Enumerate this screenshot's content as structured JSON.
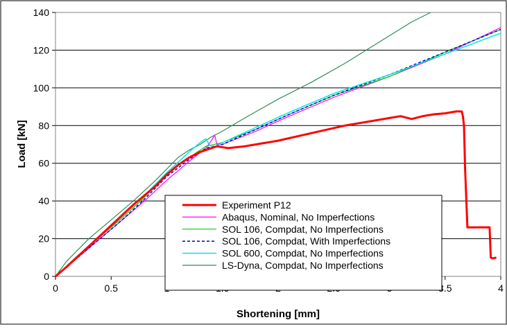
{
  "chart_data": {
    "type": "line",
    "title": "",
    "xlabel": "Shortening [mm]",
    "ylabel": "Load [kN]",
    "xlim": [
      0,
      4
    ],
    "ylim": [
      0,
      140
    ],
    "xticks": [
      0,
      0.5,
      1,
      1.5,
      2,
      2.5,
      3,
      3.5,
      4
    ],
    "xtick_labels": [
      "0",
      "0.5",
      "1",
      "1.5",
      "2",
      "2.5",
      "3",
      "3.5",
      "4"
    ],
    "yticks": [
      0,
      20,
      40,
      60,
      80,
      100,
      120,
      140
    ],
    "ytick_labels": [
      "0",
      "20",
      "40",
      "60",
      "80",
      "100",
      "120",
      "140"
    ],
    "grid": "horizontal",
    "legend_position": "bottom-center",
    "series": [
      {
        "name": "Experiment P12",
        "color": "#ff0000",
        "dash": "solid",
        "width": 3,
        "x": [
          0,
          0.1,
          0.3,
          0.5,
          0.7,
          0.9,
          1.0,
          1.1,
          1.2,
          1.3,
          1.4,
          1.45,
          1.55,
          1.7,
          2.0,
          2.3,
          2.6,
          2.9,
          3.0,
          3.1,
          3.2,
          3.3,
          3.4,
          3.5,
          3.6,
          3.65,
          3.66,
          3.67,
          3.68,
          3.7,
          3.8,
          3.9,
          3.91,
          3.93,
          3.96
        ],
        "y": [
          0,
          5,
          16,
          27,
          38,
          48,
          54,
          59,
          63,
          66,
          68,
          69,
          68,
          69,
          72,
          76,
          80,
          83,
          84,
          85,
          83.5,
          85,
          86,
          86.5,
          87.5,
          87.5,
          85,
          80,
          57,
          26,
          26,
          26,
          10,
          9.5,
          10
        ]
      },
      {
        "name": "Abaqus, Nominal, No Imperfections",
        "color": "#ff00ff",
        "dash": "solid",
        "width": 1.2,
        "x": [
          0,
          0.2,
          0.4,
          0.6,
          0.8,
          1.0,
          1.2,
          1.35,
          1.4,
          1.43,
          1.45,
          1.5,
          1.8,
          2.1,
          2.5,
          3.0,
          3.5,
          4.0
        ],
        "y": [
          0,
          10,
          20,
          30,
          40,
          51,
          61,
          68,
          72,
          75,
          70,
          70,
          77,
          85,
          95,
          106,
          118,
          132
        ]
      },
      {
        "name": "SOL 106, Compdat, No Imperfections",
        "color": "#00cc00",
        "dash": "solid",
        "width": 1.2,
        "x": [
          0,
          0.2,
          0.4,
          0.6,
          0.8,
          1.0,
          1.2,
          1.35,
          1.5,
          1.8,
          2.1,
          2.5,
          3.0,
          3.5,
          4.0
        ],
        "y": [
          0,
          11,
          21,
          31,
          42,
          54,
          63,
          69,
          71,
          78,
          86,
          96,
          106,
          119,
          131
        ]
      },
      {
        "name": "SOL 106, Compdat, With Imperfections",
        "color": "#0000cc",
        "dash": "dashed",
        "width": 1.5,
        "x": [
          0,
          0.2,
          0.4,
          0.6,
          0.8,
          1.0,
          1.2,
          1.35,
          1.5,
          1.8,
          2.1,
          2.5,
          3.0,
          3.5,
          4.0
        ],
        "y": [
          0,
          10,
          20,
          30,
          41,
          53,
          62,
          68,
          70,
          78,
          86,
          96,
          107,
          119,
          131
        ]
      },
      {
        "name": "SOL 600, Compdat, No Imperfections",
        "color": "#00e5e5",
        "dash": "solid",
        "width": 1.5,
        "x": [
          0,
          0.2,
          0.4,
          0.6,
          0.8,
          1.0,
          1.2,
          1.3,
          1.35,
          1.38,
          1.42,
          1.5,
          1.8,
          2.1,
          2.5,
          3.0,
          3.5,
          4.0
        ],
        "y": [
          0,
          11,
          21,
          32,
          43,
          55,
          66,
          71,
          73,
          70,
          68,
          71,
          79,
          87,
          97,
          107,
          118,
          129
        ]
      },
      {
        "name": "LS-Dyna, Compdat, No Imperfections",
        "color": "#2e8b57",
        "dash": "solid",
        "width": 1.2,
        "x": [
          0,
          0.1,
          0.3,
          0.5,
          0.7,
          0.9,
          1.0,
          1.1,
          1.2,
          1.3,
          1.4,
          1.5,
          1.7,
          2.0,
          2.3,
          2.6,
          2.9,
          3.2,
          3.37
        ],
        "y": [
          0,
          8,
          20,
          30,
          40,
          51,
          57,
          63,
          67,
          70,
          74,
          77,
          84,
          94,
          103,
          113,
          124,
          135,
          142
        ]
      }
    ]
  }
}
